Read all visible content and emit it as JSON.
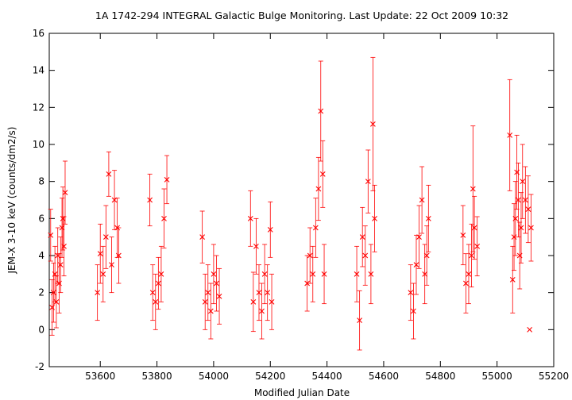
{
  "chart_data": {
    "type": "scatter",
    "title": "1A 1742-294   INTEGRAL Galactic Bulge Monitoring.  Last Update: 22 Oct 2009 10:32",
    "xlabel": "Modified Julian Date",
    "ylabel": "JEM-X 3-10 keV (counts/dm2/s)",
    "xlim": [
      53420,
      55200
    ],
    "ylim": [
      -2,
      16
    ],
    "xticks": [
      53600,
      53800,
      54000,
      54200,
      54400,
      54600,
      54800,
      55000,
      55200
    ],
    "yticks": [
      -2,
      0,
      2,
      4,
      6,
      8,
      10,
      12,
      14,
      16
    ],
    "grid": false,
    "marker": "x",
    "error_bars": true,
    "color": "#ff0000",
    "series": [
      {
        "x": [
          53425,
          53430,
          53435,
          53440,
          53445,
          53450,
          53455,
          53460,
          53465,
          53468,
          53472,
          53476,
          53590,
          53600,
          53610,
          53620,
          53630,
          53640,
          53650,
          53660,
          53665,
          53775,
          53785,
          53795,
          53805,
          53815,
          53825,
          53835,
          53960,
          53970,
          53980,
          53990,
          54000,
          54010,
          54020,
          54130,
          54140,
          54150,
          54160,
          54170,
          54180,
          54190,
          54200,
          54205,
          54330,
          54340,
          54350,
          54360,
          54370,
          54378,
          54385,
          54390,
          54505,
          54515,
          54525,
          54535,
          54545,
          54555,
          54562,
          54568,
          54695,
          54705,
          54715,
          54725,
          54735,
          54745,
          54752,
          54758,
          54880,
          54890,
          54900,
          54910,
          54915,
          54920,
          54930,
          55045,
          55055,
          55060,
          55065,
          55070,
          55075,
          55080,
          55085,
          55090,
          55100,
          55110,
          55115,
          55120
        ],
        "y": [
          5.1,
          1.2,
          2.0,
          3.0,
          1.5,
          4.0,
          2.5,
          3.5,
          5.5,
          6.0,
          4.5,
          7.4,
          2.0,
          4.1,
          3.0,
          5.0,
          8.4,
          3.5,
          7.0,
          5.5,
          4.0,
          7.0,
          2.0,
          1.5,
          2.5,
          3.0,
          6.0,
          8.1,
          5.0,
          1.5,
          2.0,
          1.0,
          3.0,
          2.5,
          1.8,
          6.0,
          1.5,
          4.5,
          2.0,
          1.0,
          3.0,
          2.0,
          5.4,
          1.5,
          2.5,
          4.0,
          3.0,
          5.5,
          7.6,
          11.8,
          8.4,
          3.0,
          3.0,
          0.5,
          5.0,
          4.0,
          8.0,
          3.0,
          11.1,
          6.0,
          2.0,
          1.0,
          3.5,
          5.0,
          7.0,
          3.0,
          4.0,
          6.0,
          5.1,
          2.5,
          3.0,
          4.0,
          7.6,
          5.5,
          4.5,
          10.5,
          2.7,
          5.0,
          6.0,
          8.5,
          7.0,
          4.0,
          5.5,
          8.0,
          7.0,
          6.5,
          0.0,
          5.5
        ],
        "err": [
          1.4,
          1.5,
          1.6,
          1.5,
          1.4,
          1.5,
          1.6,
          1.5,
          1.6,
          1.7,
          1.6,
          1.7,
          1.5,
          1.6,
          1.5,
          1.7,
          1.2,
          1.5,
          1.6,
          1.6,
          1.5,
          1.4,
          1.5,
          1.5,
          1.4,
          1.5,
          1.6,
          1.3,
          1.4,
          1.5,
          1.5,
          1.5,
          1.6,
          1.5,
          1.5,
          1.5,
          1.6,
          1.5,
          1.5,
          1.5,
          1.6,
          1.5,
          1.5,
          1.5,
          1.5,
          1.5,
          1.5,
          1.6,
          1.7,
          2.7,
          1.8,
          1.6,
          1.5,
          1.6,
          1.6,
          1.6,
          1.7,
          1.6,
          3.6,
          1.8,
          1.5,
          1.5,
          1.6,
          1.7,
          1.8,
          1.6,
          1.6,
          1.8,
          1.6,
          1.6,
          1.6,
          1.7,
          3.4,
          1.7,
          1.6,
          3.0,
          1.8,
          1.8,
          2.0,
          2.0,
          2.0,
          1.8,
          1.9,
          2.0,
          1.8,
          1.8,
          0.0,
          1.8
        ]
      }
    ]
  }
}
